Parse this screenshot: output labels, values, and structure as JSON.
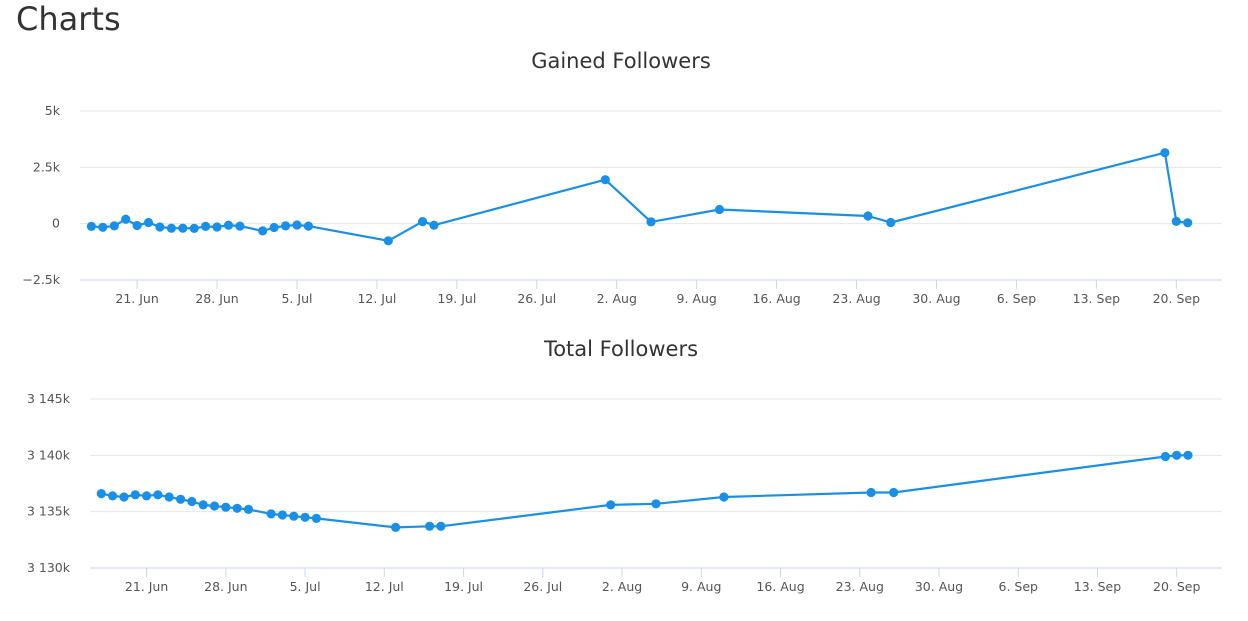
{
  "page": {
    "title": "Charts"
  },
  "colors": {
    "series": "#1a8fe6",
    "grid": "#e6e6e6",
    "axis": "#ccd6eb"
  },
  "chart_data": [
    {
      "type": "line",
      "title": "Gained Followers",
      "xlabel": "",
      "ylabel": "",
      "y_ticks": [
        {
          "value": -2500,
          "label": "−2.5k"
        },
        {
          "value": 0,
          "label": "0"
        },
        {
          "value": 2500,
          "label": "2.5k"
        },
        {
          "value": 5000,
          "label": "5k"
        }
      ],
      "ylim": [
        -2500,
        5000
      ],
      "xlim": [
        "2022-06-16",
        "2022-09-24"
      ],
      "x_ticks": [
        {
          "date": "2022-06-21",
          "label": "21. Jun"
        },
        {
          "date": "2022-06-28",
          "label": "28. Jun"
        },
        {
          "date": "2022-07-05",
          "label": "5. Jul"
        },
        {
          "date": "2022-07-12",
          "label": "12. Jul"
        },
        {
          "date": "2022-07-19",
          "label": "19. Jul"
        },
        {
          "date": "2022-07-26",
          "label": "26. Jul"
        },
        {
          "date": "2022-08-02",
          "label": "2. Aug"
        },
        {
          "date": "2022-08-09",
          "label": "9. Aug"
        },
        {
          "date": "2022-08-16",
          "label": "16. Aug"
        },
        {
          "date": "2022-08-23",
          "label": "23. Aug"
        },
        {
          "date": "2022-08-30",
          "label": "30. Aug"
        },
        {
          "date": "2022-09-06",
          "label": "6. Sep"
        },
        {
          "date": "2022-09-13",
          "label": "13. Sep"
        },
        {
          "date": "2022-09-20",
          "label": "20. Sep"
        }
      ],
      "grid": true,
      "legend": "none",
      "series": [
        {
          "points": [
            {
              "x": "2022-06-17",
              "y": -120
            },
            {
              "x": "2022-06-18",
              "y": -160
            },
            {
              "x": "2022-06-19",
              "y": -100
            },
            {
              "x": "2022-06-20",
              "y": 200
            },
            {
              "x": "2022-06-21",
              "y": -80
            },
            {
              "x": "2022-06-22",
              "y": 50
            },
            {
              "x": "2022-06-23",
              "y": -150
            },
            {
              "x": "2022-06-24",
              "y": -200
            },
            {
              "x": "2022-06-25",
              "y": -200
            },
            {
              "x": "2022-06-26",
              "y": -210
            },
            {
              "x": "2022-06-27",
              "y": -120
            },
            {
              "x": "2022-06-28",
              "y": -150
            },
            {
              "x": "2022-06-29",
              "y": -70
            },
            {
              "x": "2022-06-30",
              "y": -110
            },
            {
              "x": "2022-07-02",
              "y": -320
            },
            {
              "x": "2022-07-03",
              "y": -170
            },
            {
              "x": "2022-07-04",
              "y": -100
            },
            {
              "x": "2022-07-05",
              "y": -60
            },
            {
              "x": "2022-07-06",
              "y": -110
            },
            {
              "x": "2022-07-13",
              "y": -760
            },
            {
              "x": "2022-07-16",
              "y": 90
            },
            {
              "x": "2022-07-17",
              "y": -70
            },
            {
              "x": "2022-08-01",
              "y": 1950
            },
            {
              "x": "2022-08-05",
              "y": 80
            },
            {
              "x": "2022-08-11",
              "y": 630
            },
            {
              "x": "2022-08-24",
              "y": 340
            },
            {
              "x": "2022-08-26",
              "y": 50
            },
            {
              "x": "2022-09-19",
              "y": 3150
            },
            {
              "x": "2022-09-20",
              "y": 100
            },
            {
              "x": "2022-09-21",
              "y": 40
            }
          ]
        }
      ]
    },
    {
      "type": "line",
      "title": "Total Followers",
      "xlabel": "",
      "ylabel": "",
      "y_ticks": [
        {
          "value": 3130000,
          "label": "3 130k"
        },
        {
          "value": 3135000,
          "label": "3 135k"
        },
        {
          "value": 3140000,
          "label": "3 140k"
        },
        {
          "value": 3145000,
          "label": "3 145k"
        }
      ],
      "ylim": [
        3130000,
        3145000
      ],
      "xlim": [
        "2022-06-16",
        "2022-09-24"
      ],
      "x_ticks": [
        {
          "date": "2022-06-21",
          "label": "21. Jun"
        },
        {
          "date": "2022-06-28",
          "label": "28. Jun"
        },
        {
          "date": "2022-07-05",
          "label": "5. Jul"
        },
        {
          "date": "2022-07-12",
          "label": "12. Jul"
        },
        {
          "date": "2022-07-19",
          "label": "19. Jul"
        },
        {
          "date": "2022-07-26",
          "label": "26. Jul"
        },
        {
          "date": "2022-08-02",
          "label": "2. Aug"
        },
        {
          "date": "2022-08-09",
          "label": "9. Aug"
        },
        {
          "date": "2022-08-16",
          "label": "16. Aug"
        },
        {
          "date": "2022-08-23",
          "label": "23. Aug"
        },
        {
          "date": "2022-08-30",
          "label": "30. Aug"
        },
        {
          "date": "2022-09-06",
          "label": "6. Sep"
        },
        {
          "date": "2022-09-13",
          "label": "13. Sep"
        },
        {
          "date": "2022-09-20",
          "label": "20. Sep"
        }
      ],
      "grid": true,
      "legend": "none",
      "series": [
        {
          "points": [
            {
              "x": "2022-06-17",
              "y": 3136600
            },
            {
              "x": "2022-06-18",
              "y": 3136400
            },
            {
              "x": "2022-06-19",
              "y": 3136300
            },
            {
              "x": "2022-06-20",
              "y": 3136500
            },
            {
              "x": "2022-06-21",
              "y": 3136400
            },
            {
              "x": "2022-06-22",
              "y": 3136500
            },
            {
              "x": "2022-06-23",
              "y": 3136300
            },
            {
              "x": "2022-06-24",
              "y": 3136100
            },
            {
              "x": "2022-06-25",
              "y": 3135900
            },
            {
              "x": "2022-06-26",
              "y": 3135600
            },
            {
              "x": "2022-06-27",
              "y": 3135500
            },
            {
              "x": "2022-06-28",
              "y": 3135400
            },
            {
              "x": "2022-06-29",
              "y": 3135300
            },
            {
              "x": "2022-06-30",
              "y": 3135200
            },
            {
              "x": "2022-07-02",
              "y": 3134800
            },
            {
              "x": "2022-07-03",
              "y": 3134700
            },
            {
              "x": "2022-07-04",
              "y": 3134600
            },
            {
              "x": "2022-07-05",
              "y": 3134500
            },
            {
              "x": "2022-07-06",
              "y": 3134400
            },
            {
              "x": "2022-07-13",
              "y": 3133600
            },
            {
              "x": "2022-07-16",
              "y": 3133700
            },
            {
              "x": "2022-07-17",
              "y": 3133700
            },
            {
              "x": "2022-08-01",
              "y": 3135600
            },
            {
              "x": "2022-08-05",
              "y": 3135700
            },
            {
              "x": "2022-08-11",
              "y": 3136300
            },
            {
              "x": "2022-08-24",
              "y": 3136700
            },
            {
              "x": "2022-08-26",
              "y": 3136700
            },
            {
              "x": "2022-09-19",
              "y": 3139900
            },
            {
              "x": "2022-09-20",
              "y": 3140000
            },
            {
              "x": "2022-09-21",
              "y": 3140000
            }
          ]
        }
      ]
    }
  ]
}
